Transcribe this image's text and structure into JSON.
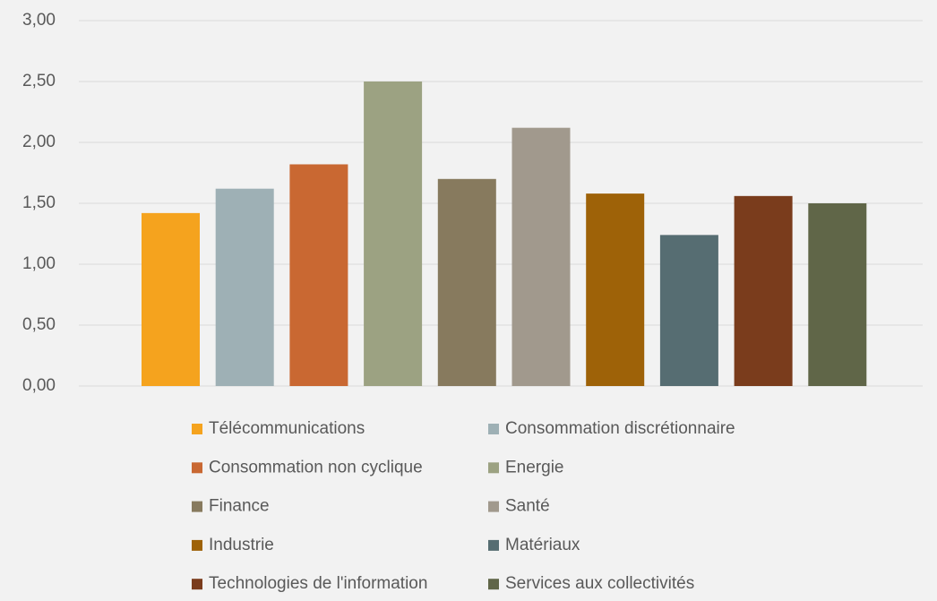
{
  "chart_data": {
    "type": "bar",
    "series": [
      {
        "name": "Télécommunications",
        "color": "#f5a31e",
        "values": [
          1.42
        ]
      },
      {
        "name": "Consommation discrétionnaire",
        "color": "#9eb0b5",
        "values": [
          1.62
        ]
      },
      {
        "name": "Consommation non cyclique",
        "color": "#c96832",
        "values": [
          1.82
        ]
      },
      {
        "name": "Energie",
        "color": "#9ca282",
        "values": [
          2.5
        ]
      },
      {
        "name": "Finance",
        "color": "#877a5e",
        "values": [
          1.7
        ]
      },
      {
        "name": "Santé",
        "color": "#a1998d",
        "values": [
          2.12
        ]
      },
      {
        "name": "Industrie",
        "color": "#9e6208",
        "values": [
          1.58
        ]
      },
      {
        "name": "Matériaux",
        "color": "#566d72",
        "values": [
          1.24
        ]
      },
      {
        "name": "Technologies de l'information",
        "color": "#7a3c1c",
        "values": [
          1.56
        ]
      },
      {
        "name": "Services aux collectivités",
        "color": "#606648",
        "values": [
          1.5
        ]
      }
    ],
    "ylim": [
      0,
      3
    ],
    "yticks": [
      {
        "value": 0,
        "label": "0,00"
      },
      {
        "value": 0.5,
        "label": "0,50"
      },
      {
        "value": 1,
        "label": "1,00"
      },
      {
        "value": 1.5,
        "label": "1,50"
      },
      {
        "value": 2,
        "label": "2,00"
      },
      {
        "value": 2.5,
        "label": "2,50"
      },
      {
        "value": 3,
        "label": "3,00"
      }
    ],
    "grid": true
  }
}
